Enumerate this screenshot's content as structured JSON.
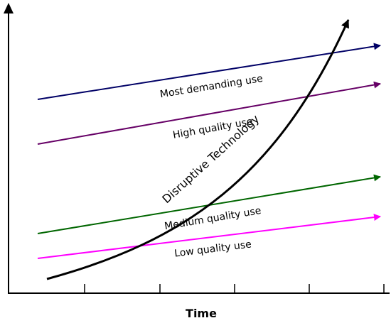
{
  "axis": {
    "x_label": "Time"
  },
  "lines": [
    {
      "label": "Most demanding use",
      "color": "#000066"
    },
    {
      "label": "High quality use",
      "color": "#660066"
    },
    {
      "label": "Medium quality use",
      "color": "#006600"
    },
    {
      "label": "Low quality use",
      "color": "#ff00ff"
    }
  ],
  "curve": {
    "label": "Disruptive Technology",
    "color": "#000000"
  }
}
